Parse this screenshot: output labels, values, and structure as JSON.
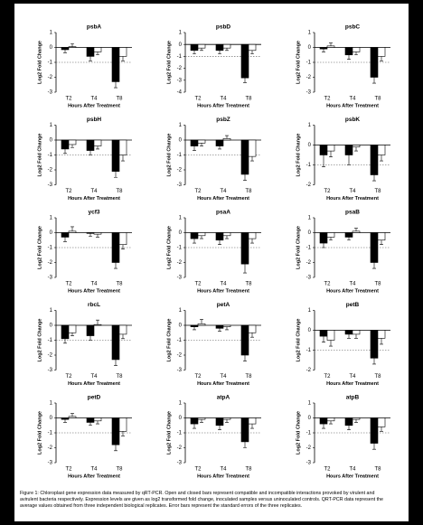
{
  "chart_data": [
    {
      "type": "bar",
      "title": "psbA",
      "y_label": "Log2 Fold Change",
      "x_label": "Hours After Treatment",
      "categories": [
        "T2",
        "T4",
        "T8"
      ],
      "ylim": [
        -3,
        1
      ],
      "yticks": [
        1,
        0,
        -1,
        -2,
        -3
      ],
      "reference_line": -1,
      "series": [
        {
          "color": "#000000",
          "values": [
            -0.15,
            -0.6,
            -2.3
          ],
          "errors": [
            0.2,
            0.3,
            0.4
          ]
        },
        {
          "color": "#ffffff",
          "values": [
            0.05,
            -0.3,
            -0.6
          ],
          "errors": [
            0.2,
            0.2,
            0.3
          ]
        }
      ]
    },
    {
      "type": "bar",
      "title": "psbD",
      "y_label": "Log2 Fold Change",
      "x_label": "Hours After Treatment",
      "categories": [
        "T2",
        "T4",
        "T8"
      ],
      "ylim": [
        -4,
        1
      ],
      "yticks": [
        1,
        0,
        -1,
        -2,
        -3,
        -4
      ],
      "reference_line": -1,
      "series": [
        {
          "color": "#000000",
          "values": [
            -0.5,
            -0.5,
            -2.8
          ],
          "errors": [
            0.3,
            0.3,
            0.4
          ]
        },
        {
          "color": "#ffffff",
          "values": [
            -0.3,
            -0.3,
            -0.5
          ],
          "errors": [
            0.2,
            0.2,
            0.3
          ]
        }
      ]
    },
    {
      "type": "bar",
      "title": "psbC",
      "y_label": "Log2 Fold Change",
      "x_label": "Hours After Treatment",
      "categories": [
        "T2",
        "T4",
        "T8"
      ],
      "ylim": [
        -3,
        1
      ],
      "yticks": [
        1,
        0,
        -1,
        -2,
        -3
      ],
      "reference_line": -1,
      "series": [
        {
          "color": "#000000",
          "values": [
            -0.1,
            -0.5,
            -2.0
          ],
          "errors": [
            0.2,
            0.3,
            0.4
          ]
        },
        {
          "color": "#ffffff",
          "values": [
            0.1,
            -0.3,
            -0.6
          ],
          "errors": [
            0.2,
            0.2,
            0.3
          ]
        }
      ]
    },
    {
      "type": "bar",
      "title": "psbH",
      "y_label": "Log2 Fold Change",
      "x_label": "Hours After Treatment",
      "categories": [
        "T2",
        "T4",
        "T8"
      ],
      "ylim": [
        -3,
        1
      ],
      "yticks": [
        1,
        0,
        -1,
        -2,
        -3
      ],
      "reference_line": -1,
      "series": [
        {
          "color": "#000000",
          "values": [
            -0.6,
            -0.7,
            -2.1
          ],
          "errors": [
            0.3,
            0.3,
            0.4
          ]
        },
        {
          "color": "#ffffff",
          "values": [
            -0.3,
            -0.4,
            -1.0
          ],
          "errors": [
            0.2,
            0.2,
            0.4
          ]
        }
      ]
    },
    {
      "type": "bar",
      "title": "psbZ",
      "y_label": "Log2 Fold Change",
      "x_label": "Hours After Treatment",
      "categories": [
        "T2",
        "T4",
        "T8"
      ],
      "ylim": [
        -3,
        1
      ],
      "yticks": [
        1,
        0,
        -1,
        -2,
        -3
      ],
      "reference_line": -1,
      "series": [
        {
          "color": "#000000",
          "values": [
            -0.4,
            -0.4,
            -2.3
          ],
          "errors": [
            0.3,
            0.2,
            0.4
          ]
        },
        {
          "color": "#ffffff",
          "values": [
            -0.2,
            0.1,
            -1.1
          ],
          "errors": [
            0.2,
            0.2,
            0.3
          ]
        }
      ]
    },
    {
      "type": "bar",
      "title": "psbK",
      "y_label": "Log2 Fold Change",
      "x_label": "Hours After Treatment",
      "categories": [
        "T2",
        "T4",
        "T8"
      ],
      "ylim": [
        -2,
        1
      ],
      "yticks": [
        1,
        0,
        -1,
        -2
      ],
      "reference_line": -1,
      "series": [
        {
          "color": "#000000",
          "values": [
            -0.5,
            -0.5,
            -1.5
          ],
          "errors": [
            0.6,
            0.5,
            0.3
          ]
        },
        {
          "color": "#ffffff",
          "values": [
            -0.3,
            -0.1,
            -0.5
          ],
          "errors": [
            0.3,
            0.2,
            0.3
          ]
        }
      ]
    },
    {
      "type": "bar",
      "title": "ycf3",
      "y_label": "Log2 Fold Change",
      "x_label": "Hours After Treatment",
      "categories": [
        "T2",
        "T4",
        "T8"
      ],
      "ylim": [
        -3,
        1
      ],
      "yticks": [
        1,
        0,
        -1,
        -2,
        -3
      ],
      "reference_line": -1,
      "series": [
        {
          "color": "#000000",
          "values": [
            -0.3,
            -0.05,
            -2.0
          ],
          "errors": [
            0.3,
            0.2,
            0.4
          ]
        },
        {
          "color": "#ffffff",
          "values": [
            0.1,
            -0.1,
            -0.8
          ],
          "errors": [
            0.3,
            0.2,
            0.3
          ]
        }
      ]
    },
    {
      "type": "bar",
      "title": "psaA",
      "y_label": "Log2 Fold Change",
      "x_label": "Hours After Treatment",
      "categories": [
        "T2",
        "T4",
        "T8"
      ],
      "ylim": [
        -3,
        1
      ],
      "yticks": [
        1,
        0,
        -1,
        -2,
        -3
      ],
      "reference_line": -1,
      "series": [
        {
          "color": "#000000",
          "values": [
            -0.4,
            -0.5,
            -2.1
          ],
          "errors": [
            0.3,
            0.3,
            0.6
          ]
        },
        {
          "color": "#ffffff",
          "values": [
            -0.2,
            -0.2,
            -0.4
          ],
          "errors": [
            0.2,
            0.2,
            0.3
          ]
        }
      ]
    },
    {
      "type": "bar",
      "title": "psaB",
      "y_label": "Log2 Fold Change",
      "x_label": "Hours After Treatment",
      "categories": [
        "T2",
        "T4",
        "T8"
      ],
      "ylim": [
        -3,
        1
      ],
      "yticks": [
        1,
        0,
        -1,
        -2,
        -3
      ],
      "reference_line": -1,
      "series": [
        {
          "color": "#000000",
          "values": [
            -0.7,
            -0.3,
            -2.0
          ],
          "errors": [
            0.3,
            0.2,
            0.4
          ]
        },
        {
          "color": "#ffffff",
          "values": [
            -0.3,
            0.1,
            -0.5
          ],
          "errors": [
            0.2,
            0.2,
            0.3
          ]
        }
      ]
    },
    {
      "type": "bar",
      "title": "rbcL",
      "y_label": "Log2 Fold Change",
      "x_label": "Hours After Treatment",
      "categories": [
        "T2",
        "T4",
        "T8"
      ],
      "ylim": [
        -3,
        1
      ],
      "yticks": [
        1,
        0,
        -1,
        -2,
        -3
      ],
      "reference_line": -1,
      "series": [
        {
          "color": "#000000",
          "values": [
            -0.9,
            -0.7,
            -2.3
          ],
          "errors": [
            0.3,
            0.3,
            0.4
          ]
        },
        {
          "color": "#ffffff",
          "values": [
            -0.5,
            0.05,
            -0.6
          ],
          "errors": [
            0.2,
            0.3,
            0.3
          ]
        }
      ]
    },
    {
      "type": "bar",
      "title": "petA",
      "y_label": "Log2 Fold Change",
      "x_label": "Hours After Treatment",
      "categories": [
        "T2",
        "T4",
        "T8"
      ],
      "ylim": [
        -3,
        1
      ],
      "yticks": [
        1,
        0,
        -1,
        -2,
        -3
      ],
      "reference_line": -1,
      "series": [
        {
          "color": "#000000",
          "values": [
            -0.1,
            -0.2,
            -2.0
          ],
          "errors": [
            0.2,
            0.2,
            0.4
          ]
        },
        {
          "color": "#ffffff",
          "values": [
            0.1,
            -0.1,
            -0.5
          ],
          "errors": [
            0.3,
            0.2,
            0.3
          ]
        }
      ]
    },
    {
      "type": "bar",
      "title": "petB",
      "y_label": "Log2 Fold Change",
      "x_label": "Hours After Treatment",
      "categories": [
        "T2",
        "T4",
        "T8"
      ],
      "ylim": [
        -2,
        1
      ],
      "yticks": [
        1,
        0,
        -1,
        -2
      ],
      "reference_line": -1,
      "series": [
        {
          "color": "#000000",
          "values": [
            -0.3,
            -0.2,
            -1.4
          ],
          "errors": [
            0.3,
            0.2,
            0.3
          ]
        },
        {
          "color": "#ffffff",
          "values": [
            -0.5,
            -0.2,
            -0.4
          ],
          "errors": [
            0.3,
            0.2,
            0.3
          ]
        }
      ]
    },
    {
      "type": "bar",
      "title": "petD",
      "y_label": "Log2 Fold Change",
      "x_label": "Hours After Treatment",
      "categories": [
        "T2",
        "T4",
        "T8"
      ],
      "ylim": [
        -3,
        1
      ],
      "yticks": [
        1,
        0,
        -1,
        -2,
        -3
      ],
      "reference_line": -1,
      "series": [
        {
          "color": "#000000",
          "values": [
            -0.1,
            -0.3,
            -1.8
          ],
          "errors": [
            0.2,
            0.2,
            0.4
          ]
        },
        {
          "color": "#ffffff",
          "values": [
            0.1,
            -0.2,
            -0.9
          ],
          "errors": [
            0.2,
            0.2,
            0.3
          ]
        }
      ]
    },
    {
      "type": "bar",
      "title": "atpA",
      "y_label": "Log2 Fold Change",
      "x_label": "Hours After Treatment",
      "categories": [
        "T2",
        "T4",
        "T8"
      ],
      "ylim": [
        -3,
        1
      ],
      "yticks": [
        1,
        0,
        -1,
        -2,
        -3
      ],
      "reference_line": -1,
      "series": [
        {
          "color": "#000000",
          "values": [
            -0.4,
            -0.5,
            -1.6
          ],
          "errors": [
            0.3,
            0.3,
            0.4
          ]
        },
        {
          "color": "#ffffff",
          "values": [
            -0.1,
            -0.1,
            -0.4
          ],
          "errors": [
            0.2,
            0.2,
            0.3
          ]
        }
      ]
    },
    {
      "type": "bar",
      "title": "atpB",
      "y_label": "Log2 Fold Change",
      "x_label": "Hours After Treatment",
      "categories": [
        "T2",
        "T4",
        "T8"
      ],
      "ylim": [
        -3,
        1
      ],
      "yticks": [
        1,
        0,
        -1,
        -2,
        -3
      ],
      "reference_line": -1,
      "series": [
        {
          "color": "#000000",
          "values": [
            -0.4,
            -0.5,
            -1.7
          ],
          "errors": [
            0.3,
            0.3,
            0.4
          ]
        },
        {
          "color": "#ffffff",
          "values": [
            -0.2,
            -0.1,
            -0.6
          ],
          "errors": [
            0.2,
            0.2,
            0.3
          ]
        }
      ]
    }
  ],
  "caption": "Figure 1: Chloroplast gene expression data measured by qRT-PCR. Open and closed bars represent compatible and incompatible interactions provoked by virulent and avirulent bacteria respectively. Expression levels are given as log2 transformed fold change, inoculated samples versus uninoculated controls. QRT-PCR data represent the average values obtained from three independent biological replicates. Error bars represent the standard errors of the three replicates."
}
